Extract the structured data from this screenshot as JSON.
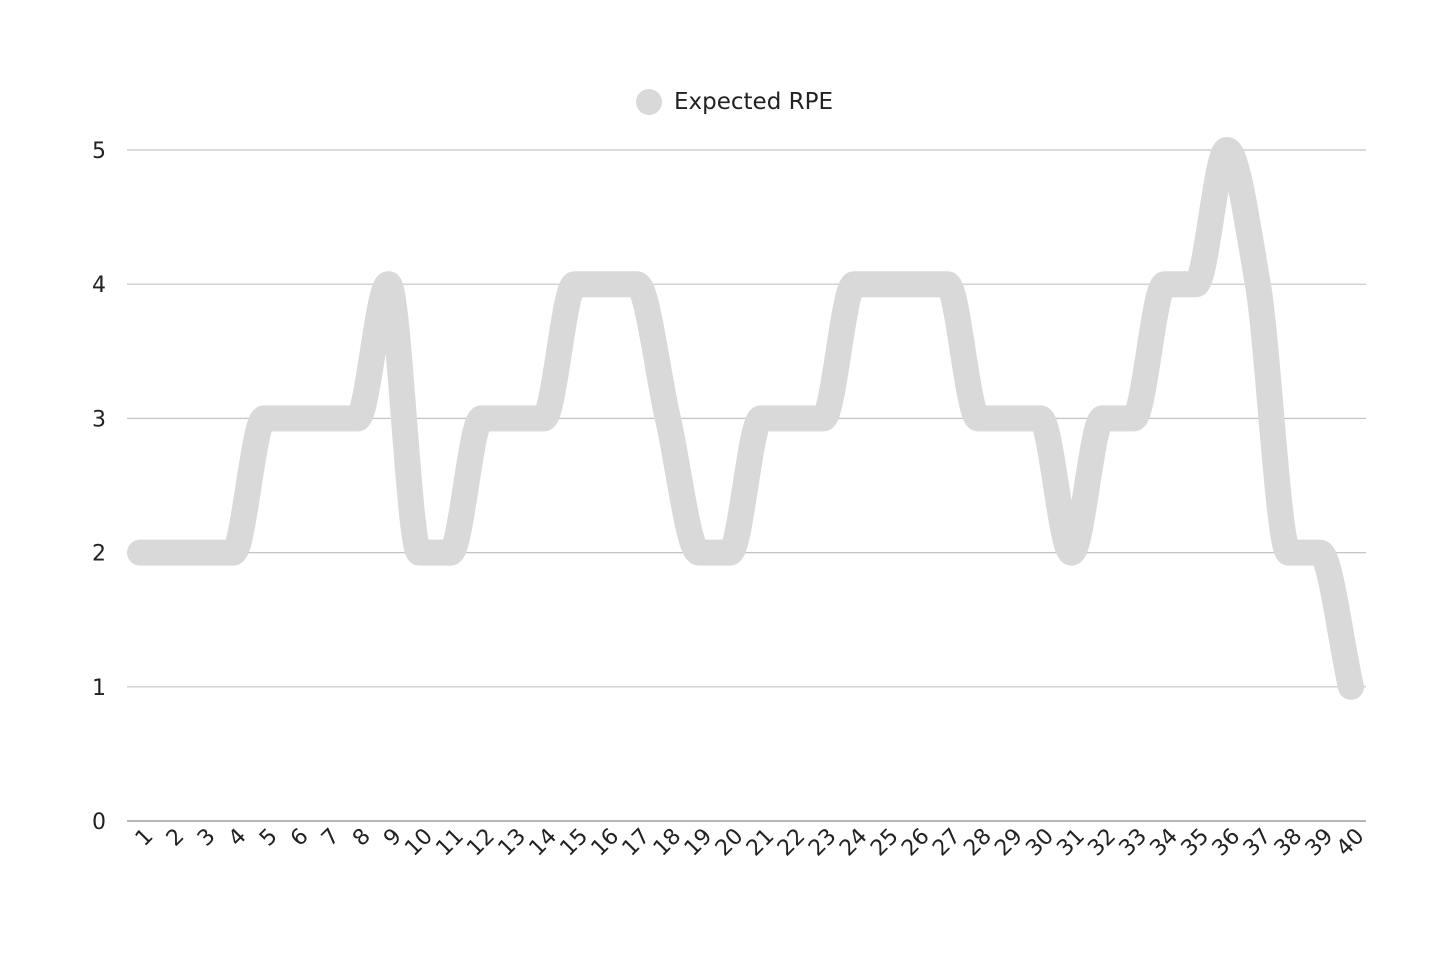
{
  "chart_data": {
    "type": "line",
    "title": "",
    "xlabel": "",
    "ylabel": "",
    "legend": {
      "position": "top-center",
      "entries": [
        "Expected RPE"
      ]
    },
    "grid": true,
    "ylim": [
      0,
      5
    ],
    "yticks": [
      0,
      1,
      2,
      3,
      4,
      5
    ],
    "categories": [
      "1",
      "2",
      "3",
      "4",
      "5",
      "6",
      "7",
      "8",
      "9",
      "10",
      "11",
      "12",
      "13",
      "14",
      "15",
      "16",
      "17",
      "18",
      "19",
      "20",
      "21",
      "22",
      "23",
      "24",
      "25",
      "26",
      "27",
      "28",
      "29",
      "30",
      "31",
      "32",
      "33",
      "34",
      "35",
      "36",
      "37",
      "38",
      "39",
      "40"
    ],
    "series": [
      {
        "name": "Expected RPE",
        "color": "#d9d9d9",
        "smooth": true,
        "values": [
          2,
          2,
          2,
          2,
          3,
          3,
          3,
          3,
          4,
          2,
          2,
          3,
          3,
          3,
          4,
          4,
          4,
          3,
          2,
          2,
          3,
          3,
          3,
          4,
          4,
          4,
          4,
          3,
          3,
          3,
          2,
          3,
          3,
          4,
          4,
          5,
          4,
          2,
          2,
          1
        ]
      }
    ]
  }
}
